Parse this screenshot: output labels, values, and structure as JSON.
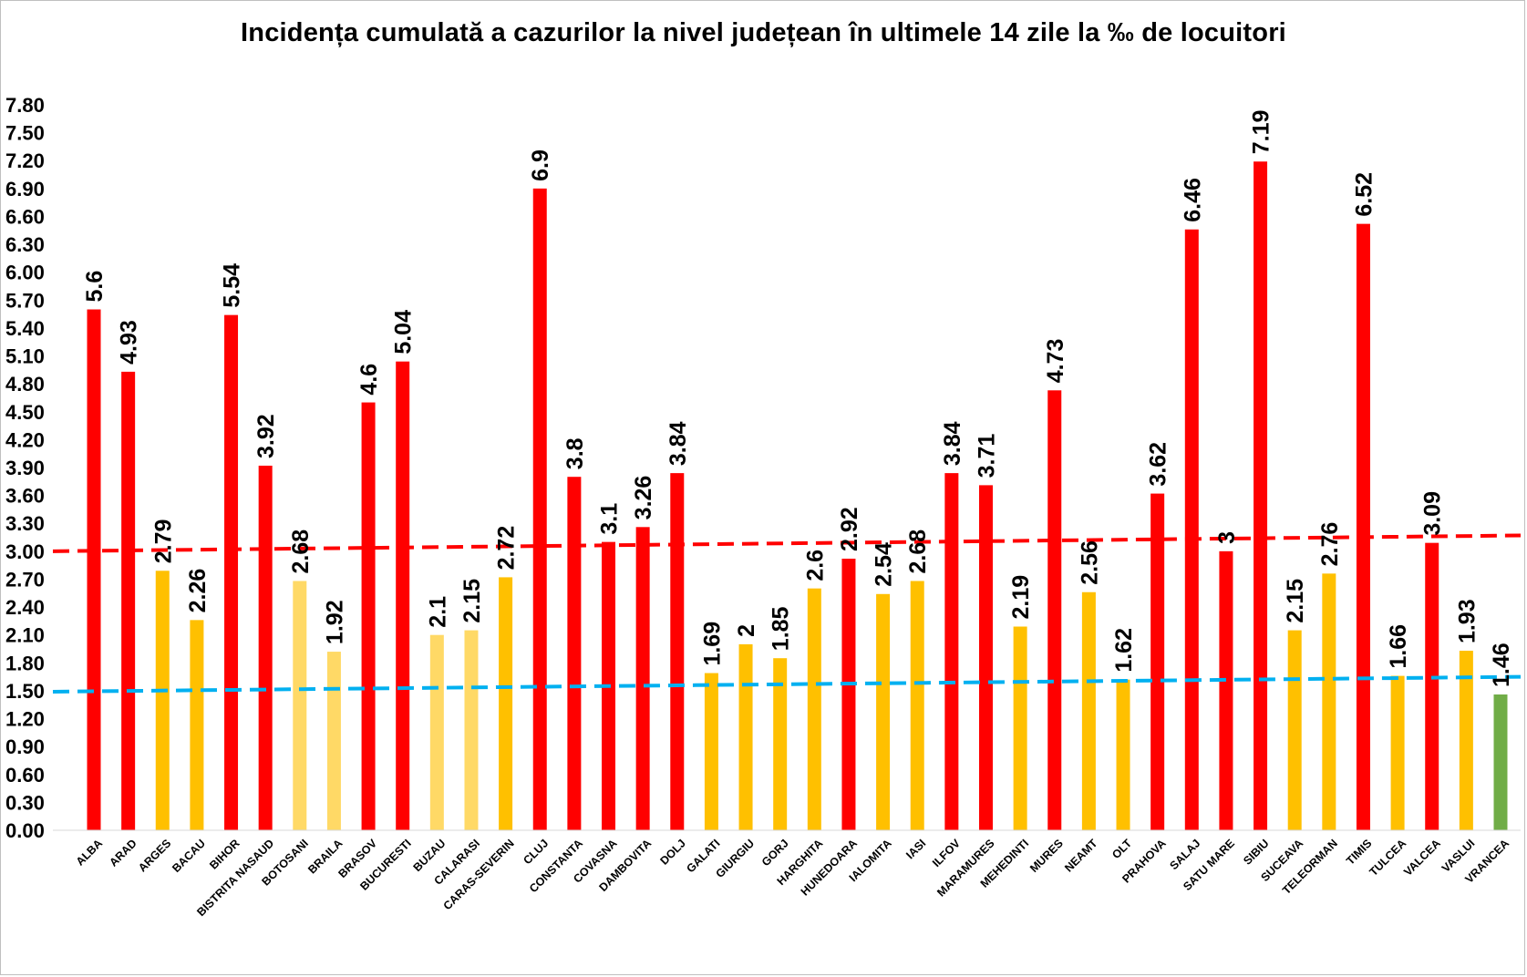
{
  "chart_data": {
    "type": "bar",
    "title": "Incidența cumulată a cazurilor la nivel județean în ultimele 14 zile la ‰ de locuitori",
    "xlabel": "",
    "ylabel": "",
    "ylim": [
      0,
      7.8
    ],
    "yticks": [
      "0.00",
      "0.30",
      "0.60",
      "0.90",
      "1.20",
      "1.50",
      "1.80",
      "2.10",
      "2.40",
      "2.70",
      "3.00",
      "3.30",
      "3.60",
      "3.90",
      "4.20",
      "4.50",
      "4.80",
      "5.10",
      "5.40",
      "5.70",
      "6.00",
      "6.30",
      "6.60",
      "6.90",
      "7.20",
      "7.50",
      "7.80"
    ],
    "grid": false,
    "legend": "none",
    "categories": [
      "ALBA",
      "ARAD",
      "ARGES",
      "BACAU",
      "BIHOR",
      "BISTRITA NASAUD",
      "BOTOSANI",
      "BRAILA",
      "BRASOV",
      "BUCURESTI",
      "BUZAU",
      "CALARASI",
      "CARAS-SEVERIN",
      "CLUJ",
      "CONSTANTA",
      "COVASNA",
      "DAMBOVITA",
      "DOLJ",
      "GALATI",
      "GIURGIU",
      "GORJ",
      "HARGHITA",
      "HUNEDOARA",
      "IALOMITA",
      "IASI",
      "ILFOV",
      "MARAMURES",
      "MEHEDINTI",
      "MURES",
      "NEAMT",
      "OLT",
      "PRAHOVA",
      "SALAJ",
      "SATU MARE",
      "SIBIU",
      "SUCEAVA",
      "TELEORMAN",
      "TIMIS",
      "TULCEA",
      "VALCEA",
      "VASLUI",
      "VRANCEA"
    ],
    "values": [
      5.6,
      4.93,
      2.79,
      2.26,
      5.54,
      3.92,
      2.68,
      1.92,
      4.6,
      5.04,
      2.1,
      2.15,
      2.72,
      6.9,
      3.8,
      3.1,
      3.26,
      3.84,
      1.69,
      2,
      1.85,
      2.6,
      2.92,
      2.54,
      2.68,
      3.84,
      3.71,
      2.19,
      4.73,
      2.56,
      1.62,
      3.62,
      6.46,
      3,
      7.19,
      2.15,
      2.76,
      6.52,
      1.66,
      3.09,
      1.93,
      1.46
    ],
    "data_labels": [
      "5.6",
      "4.93",
      "2.79",
      "2.26",
      "5.54",
      "3.92",
      "2.68",
      "1.92",
      "4.6",
      "5.04",
      "2.1",
      "2.15",
      "2.72",
      "6.9",
      "3.8",
      "3.1",
      "3.26",
      "3.84",
      "1.69",
      "2",
      "1.85",
      "2.6",
      "2.92",
      "2.54",
      "2.68",
      "3.84",
      "3.71",
      "2.19",
      "4.73",
      "2.56",
      "1.62",
      "3.62",
      "6.46",
      "3",
      "7.19",
      "2.15",
      "2.76",
      "6.52",
      "1.66",
      "3.09",
      "1.93",
      "1.46"
    ],
    "bar_colors": [
      "#ff0000",
      "#ff0000",
      "#ffc000",
      "#ffc000",
      "#ff0000",
      "#ff0000",
      "#ffd966",
      "#ffd966",
      "#ff0000",
      "#ff0000",
      "#ffd966",
      "#ffd966",
      "#ffc000",
      "#ff0000",
      "#ff0000",
      "#ff0000",
      "#ff0000",
      "#ff0000",
      "#ffc000",
      "#ffc000",
      "#ffc000",
      "#ffc000",
      "#ff0000",
      "#ffc000",
      "#ffc000",
      "#ff0000",
      "#ff0000",
      "#ffc000",
      "#ff0000",
      "#ffc000",
      "#ffc000",
      "#ff0000",
      "#ff0000",
      "#ff0000",
      "#ff0000",
      "#ffc000",
      "#ffc000",
      "#ff0000",
      "#ffc000",
      "#ff0000",
      "#ffc000",
      "#70ad47"
    ],
    "reference_lines": [
      {
        "color": "#ff0000",
        "style": "dashed",
        "y_start": 3.0,
        "y_end": 3.17
      },
      {
        "color": "#00b0f0",
        "style": "dashed",
        "y_start": 1.49,
        "y_end": 1.65
      }
    ]
  }
}
